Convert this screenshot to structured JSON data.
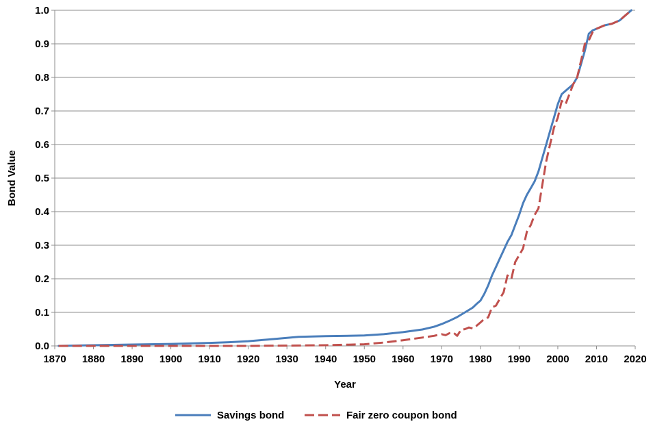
{
  "chart_data": {
    "type": "line",
    "title": "",
    "xlabel": "Year",
    "ylabel": "Bond Value",
    "xlim": [
      1870,
      2020
    ],
    "ylim": [
      0.0,
      1.0
    ],
    "x_ticks": [
      1870,
      1880,
      1890,
      1900,
      1910,
      1920,
      1930,
      1940,
      1950,
      1960,
      1970,
      1980,
      1990,
      2000,
      2010,
      2020
    ],
    "y_ticks": [
      "0.0",
      "0.1",
      "0.2",
      "0.3",
      "0.4",
      "0.5",
      "0.6",
      "0.7",
      "0.8",
      "0.9",
      "1.0"
    ],
    "grid": "horizontal",
    "legend_position": "bottom",
    "series": [
      {
        "name": "Savings bond",
        "color": "#4a7ebb",
        "style": "solid",
        "x": [
          1871,
          1880,
          1890,
          1900,
          1910,
          1915,
          1920,
          1925,
          1930,
          1933,
          1940,
          1950,
          1955,
          1960,
          1965,
          1968,
          1970,
          1972,
          1974,
          1976,
          1978,
          1979,
          1980,
          1981,
          1982,
          1983,
          1984,
          1985,
          1986,
          1987,
          1988,
          1989,
          1990,
          1991,
          1992,
          1993,
          1994,
          1995,
          1996,
          1997,
          1998,
          1999,
          2000,
          2001,
          2002,
          2003,
          2004,
          2005,
          2006,
          2007,
          2008,
          2009,
          2010,
          2012,
          2014,
          2016,
          2017,
          2018,
          2019
        ],
        "y": [
          0.0,
          0.002,
          0.004,
          0.006,
          0.009,
          0.011,
          0.014,
          0.019,
          0.024,
          0.027,
          0.029,
          0.031,
          0.035,
          0.041,
          0.049,
          0.057,
          0.065,
          0.075,
          0.086,
          0.1,
          0.114,
          0.125,
          0.135,
          0.155,
          0.18,
          0.21,
          0.235,
          0.26,
          0.285,
          0.31,
          0.33,
          0.36,
          0.39,
          0.425,
          0.45,
          0.47,
          0.49,
          0.52,
          0.56,
          0.6,
          0.64,
          0.68,
          0.72,
          0.75,
          0.76,
          0.77,
          0.78,
          0.8,
          0.84,
          0.88,
          0.93,
          0.94,
          0.945,
          0.955,
          0.96,
          0.97,
          0.98,
          0.99,
          1.0
        ]
      },
      {
        "name": "Fair zero coupon bond",
        "color": "#c0504d",
        "style": "dashed",
        "x": [
          1871,
          1880,
          1890,
          1900,
          1910,
          1920,
          1930,
          1940,
          1950,
          1955,
          1960,
          1965,
          1968,
          1970,
          1971,
          1972,
          1973,
          1974,
          1975,
          1976,
          1977,
          1978,
          1979,
          1980,
          1981,
          1982,
          1983,
          1984,
          1985,
          1986,
          1987,
          1988,
          1989,
          1990,
          1991,
          1992,
          1993,
          1994,
          1995,
          1996,
          1997,
          1998,
          1999,
          2000,
          2001,
          2002,
          2003,
          2004,
          2005,
          2006,
          2007,
          2008,
          2009,
          2010,
          2012,
          2014,
          2016,
          2017,
          2018,
          2019
        ],
        "y": [
          0.0,
          0.0,
          0.0,
          0.0,
          0.0,
          0.0,
          0.001,
          0.002,
          0.005,
          0.01,
          0.017,
          0.025,
          0.03,
          0.035,
          0.032,
          0.038,
          0.04,
          0.03,
          0.048,
          0.05,
          0.055,
          0.052,
          0.06,
          0.07,
          0.08,
          0.085,
          0.115,
          0.12,
          0.14,
          0.16,
          0.21,
          0.2,
          0.25,
          0.27,
          0.29,
          0.34,
          0.36,
          0.39,
          0.41,
          0.48,
          0.55,
          0.6,
          0.65,
          0.68,
          0.73,
          0.72,
          0.75,
          0.78,
          0.8,
          0.85,
          0.9,
          0.91,
          0.935,
          0.945,
          0.955,
          0.96,
          0.97,
          0.98,
          0.99,
          1.0
        ]
      }
    ]
  }
}
